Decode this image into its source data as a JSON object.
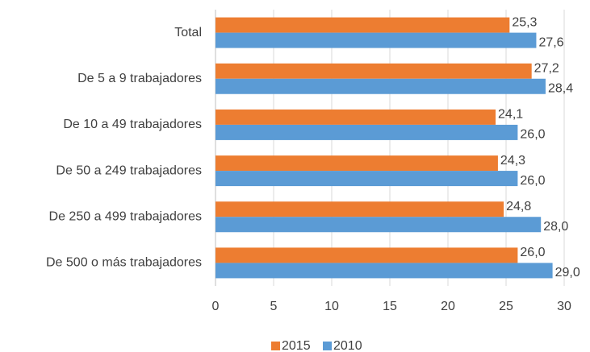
{
  "chart_data": {
    "type": "hbar",
    "categories": [
      "Total",
      "De 5 a 9 trabajadores",
      "De 10 a 49 trabajadores",
      "De 50 a 249 trabajadores",
      "De 250 a 499 trabajadores",
      "De 500 o más trabajadores"
    ],
    "series": [
      {
        "name": "2015",
        "color": "#ed7d31",
        "values": [
          25.3,
          27.2,
          24.1,
          24.3,
          24.8,
          26.0
        ],
        "value_labels": [
          "25,3",
          "27,2",
          "24,1",
          "24,3",
          "24,8",
          "26,0"
        ]
      },
      {
        "name": "2010",
        "color": "#5b9bd5",
        "values": [
          27.6,
          28.4,
          26.0,
          26.0,
          28.0,
          29.0
        ],
        "value_labels": [
          "27,6",
          "28,4",
          "26,0",
          "26,0",
          "28,0",
          "29,0"
        ]
      }
    ],
    "xlim": [
      0,
      30
    ],
    "xticks": [
      0,
      5,
      10,
      15,
      20,
      25,
      30
    ],
    "grid": true,
    "legend": "bottom"
  }
}
